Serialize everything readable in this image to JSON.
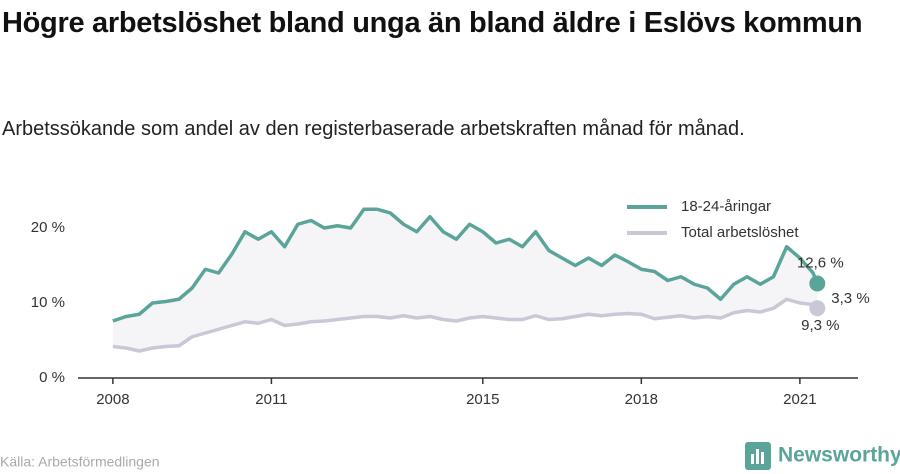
{
  "chart_data": {
    "type": "line",
    "title": "Högre arbetslöshet bland unga än bland äldre i Eslövs kommun",
    "subtitle": "Arbetssökande som andel av den registerbaserade arbetskraften månad för månad.",
    "source": "Källa: Arbetsförmedlingen",
    "brand": "Newsworthy",
    "x": [
      2008,
      2008.25,
      2008.5,
      2008.75,
      2009,
      2009.25,
      2009.5,
      2009.75,
      2010,
      2010.25,
      2010.5,
      2010.75,
      2011,
      2011.25,
      2011.5,
      2011.75,
      2012,
      2012.25,
      2012.5,
      2012.75,
      2013,
      2013.25,
      2013.5,
      2013.75,
      2014,
      2014.25,
      2014.5,
      2014.75,
      2015,
      2015.25,
      2015.5,
      2015.75,
      2016,
      2016.25,
      2016.5,
      2016.75,
      2017,
      2017.25,
      2017.5,
      2017.75,
      2018,
      2018.25,
      2018.5,
      2018.75,
      2019,
      2019.25,
      2019.5,
      2019.75,
      2020,
      2020.25,
      2020.5,
      2020.75,
      2021,
      2021.25,
      2021.33
    ],
    "series": [
      {
        "name": "18-24-åringar",
        "color": "#5ba49a",
        "values": [
          7.6,
          8.2,
          8.5,
          10.0,
          10.2,
          10.5,
          12.0,
          14.5,
          14.0,
          16.5,
          19.5,
          18.5,
          19.5,
          17.5,
          20.5,
          21.0,
          20.0,
          20.3,
          20.0,
          22.5,
          22.5,
          22.0,
          20.5,
          19.5,
          21.5,
          19.5,
          18.5,
          20.5,
          19.5,
          18.0,
          18.5,
          17.5,
          19.5,
          17.0,
          16.0,
          15.0,
          16.0,
          15.0,
          16.4,
          15.5,
          14.5,
          14.2,
          13.0,
          13.5,
          12.5,
          12.0,
          10.5,
          12.5,
          13.5,
          12.5,
          13.5,
          17.5,
          16.0,
          14.0,
          12.6
        ],
        "value_labels": [
          null,
          null,
          null,
          null,
          null,
          null,
          null,
          null,
          null,
          null,
          null,
          null,
          null,
          null,
          null,
          null,
          null,
          null,
          null,
          null,
          null,
          null,
          null,
          null,
          null,
          null,
          null,
          null,
          null,
          null,
          null,
          null,
          null,
          null,
          null,
          null,
          null,
          null,
          null,
          null,
          null,
          null,
          null,
          null,
          null,
          null,
          null,
          null,
          null,
          null,
          null,
          null,
          null,
          null,
          "12,6 %"
        ]
      },
      {
        "name": "Total arbetslöshet",
        "color": "#c9c8d6",
        "values": [
          4.2,
          4.0,
          3.6,
          4.0,
          4.2,
          4.3,
          5.5,
          6.0,
          6.5,
          7.0,
          7.5,
          7.3,
          7.8,
          7.0,
          7.2,
          7.5,
          7.6,
          7.8,
          8.0,
          8.2,
          8.2,
          8.0,
          8.3,
          8.0,
          8.2,
          7.8,
          7.6,
          8.0,
          8.2,
          8.0,
          7.8,
          7.8,
          8.3,
          7.8,
          7.9,
          8.2,
          8.5,
          8.3,
          8.5,
          8.6,
          8.5,
          7.9,
          8.1,
          8.3,
          8.0,
          8.2,
          8.0,
          8.7,
          9.0,
          8.8,
          9.3,
          10.5,
          10.0,
          9.8,
          9.3
        ],
        "value_labels": [
          null,
          null,
          null,
          null,
          null,
          null,
          null,
          null,
          null,
          null,
          null,
          null,
          null,
          null,
          null,
          null,
          null,
          null,
          null,
          null,
          null,
          null,
          null,
          null,
          null,
          null,
          null,
          null,
          null,
          null,
          null,
          null,
          null,
          null,
          null,
          null,
          null,
          null,
          null,
          null,
          null,
          null,
          null,
          null,
          null,
          null,
          null,
          null,
          null,
          null,
          null,
          null,
          null,
          null,
          "9,3 %"
        ]
      }
    ],
    "annotations": [
      {
        "text": "3,3 %",
        "value": 3.3
      }
    ],
    "xlim": [
      2007.34,
      2022.1
    ],
    "xticks": [
      2008,
      2011,
      2015,
      2018,
      2021
    ],
    "ylim": [
      0,
      24
    ],
    "yticks": [
      {
        "value": 0,
        "label": "0 %"
      },
      {
        "value": 10,
        "label": "10 %"
      },
      {
        "value": 20,
        "label": "20 %"
      }
    ],
    "legend": "upper right",
    "fill_between": true
  }
}
